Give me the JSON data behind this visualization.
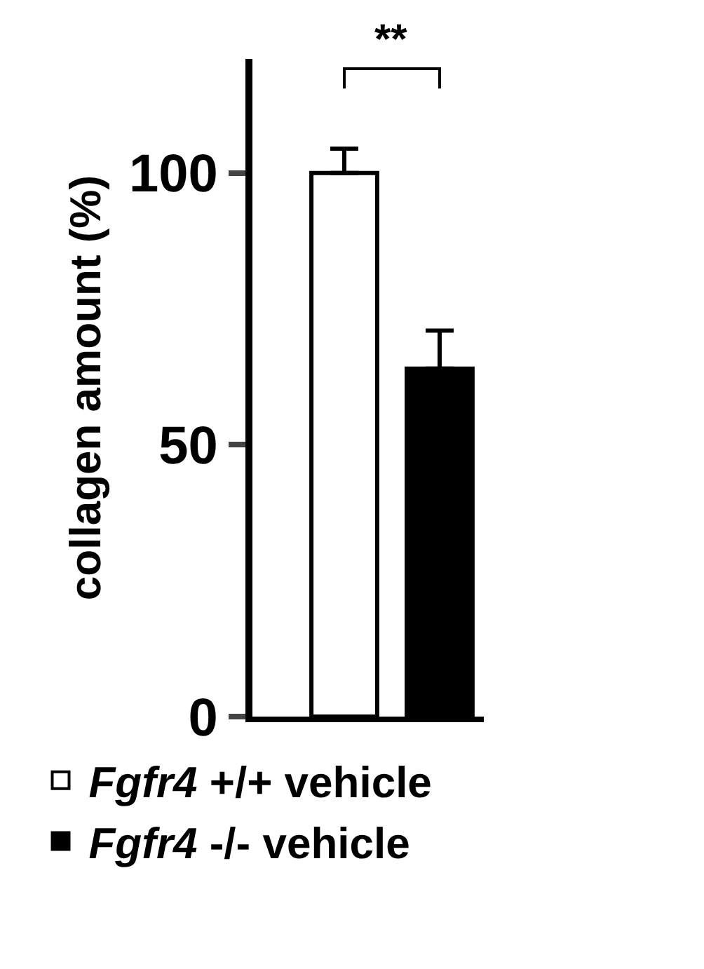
{
  "chart_data": {
    "type": "bar",
    "ylabel": "collagen amount (%)",
    "categories": [
      null
    ],
    "series": [
      {
        "name": "Fgfr4 +/+ vehicle",
        "color": "#ffffff",
        "values": [
          100
        ],
        "errors": [
          [
            100,
            104.5
          ]
        ]
      },
      {
        "name": "Fgfr4 -/- vehicle",
        "color": "#000000",
        "values": [
          64
        ],
        "errors": [
          [
            64,
            71
          ]
        ]
      }
    ],
    "ylim": [
      0,
      121
    ],
    "yticks": [
      0,
      50,
      100
    ],
    "grid": false,
    "legend": "bottom",
    "tick_labels": "y",
    "annotations": [
      "**"
    ]
  }
}
